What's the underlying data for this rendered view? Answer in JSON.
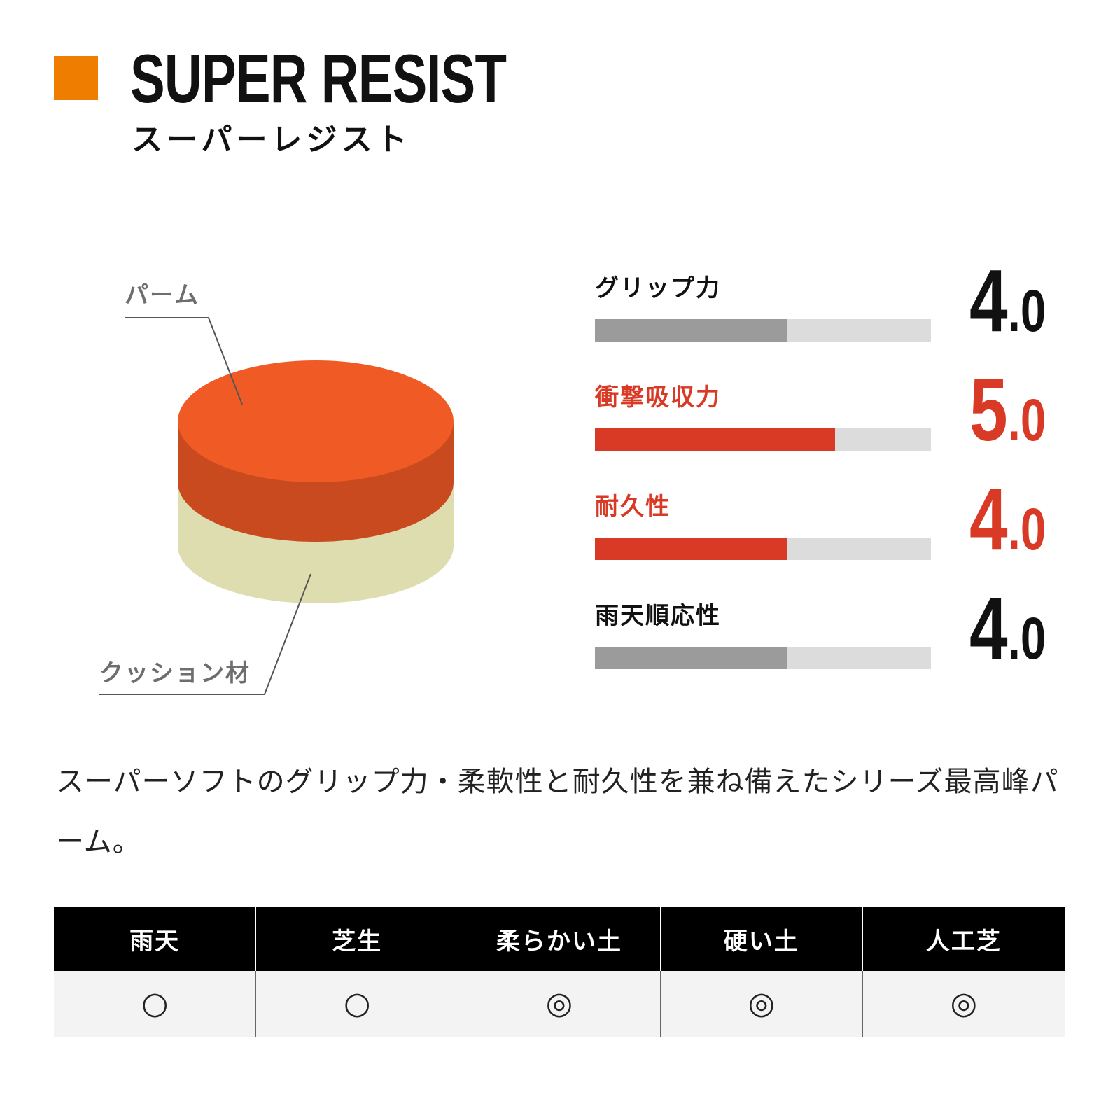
{
  "header": {
    "title": "SUPER RESIST",
    "subtitle": "スーパーレジスト",
    "accent_color": "#ef7d00"
  },
  "diagram": {
    "top_layer_label": "パーム",
    "bottom_layer_label": "クッション材",
    "top_color": "#f05a24",
    "top_side_color": "#c94a1e",
    "bottom_color": "#deddb0"
  },
  "stats": [
    {
      "label": "グリップ力",
      "value_int": "4",
      "value_dec": ".0",
      "value": 4.0,
      "max": 7.0,
      "highlight": false,
      "color": "#111111",
      "bar_color": "#9b9b9b"
    },
    {
      "label": "衝撃吸収力",
      "value_int": "5",
      "value_dec": ".0",
      "value": 5.0,
      "max": 7.0,
      "highlight": true,
      "color": "#d93a26",
      "bar_color": "#d93a26"
    },
    {
      "label": "耐久性",
      "value_int": "4",
      "value_dec": ".0",
      "value": 4.0,
      "max": 7.0,
      "highlight": true,
      "color": "#d93a26",
      "bar_color": "#d93a26"
    },
    {
      "label": "雨天順応性",
      "value_int": "4",
      "value_dec": ".0",
      "value": 4.0,
      "max": 7.0,
      "highlight": false,
      "color": "#111111",
      "bar_color": "#9b9b9b"
    }
  ],
  "description": "スーパーソフトのグリップ力・柔軟性と耐久性を兼ね備えたシリーズ最高峰パーム。",
  "terrain": {
    "headers": [
      "雨天",
      "芝生",
      "柔らかい土",
      "硬い土",
      "人工芝"
    ],
    "marks": [
      "○",
      "○",
      "◎",
      "◎",
      "◎"
    ]
  }
}
